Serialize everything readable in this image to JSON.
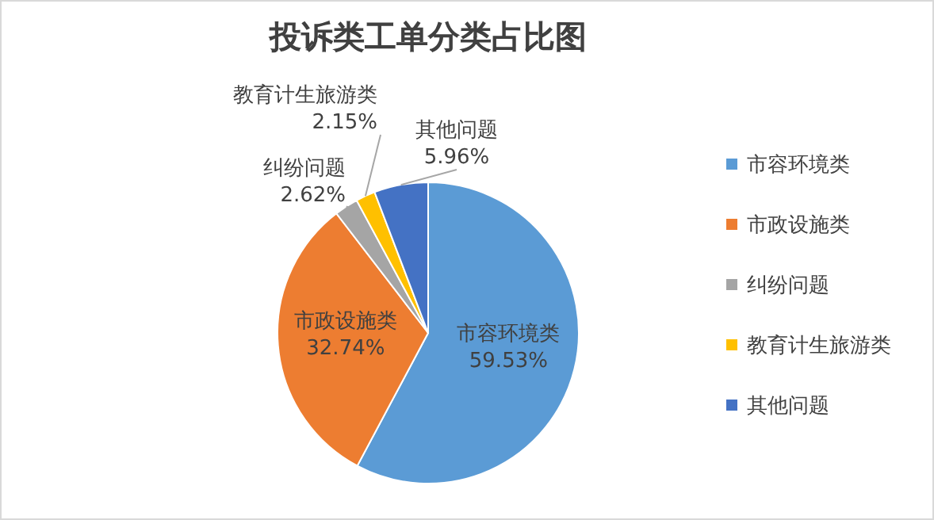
{
  "chart_data": {
    "type": "pie",
    "title": "投诉类工单分类占比图",
    "categories": [
      "市容环境类",
      "市政设施类",
      "纠纷问题",
      "教育计生旅游类",
      "其他问题"
    ],
    "values": [
      59.53,
      32.74,
      2.62,
      2.15,
      5.96
    ],
    "value_labels": [
      "59.53%",
      "32.74%",
      "2.62%",
      "2.15%",
      "5.96%"
    ],
    "colors": [
      "#5b9bd5",
      "#ed7d31",
      "#a5a5a5",
      "#ffc000",
      "#4472c4"
    ],
    "legend": "right"
  }
}
